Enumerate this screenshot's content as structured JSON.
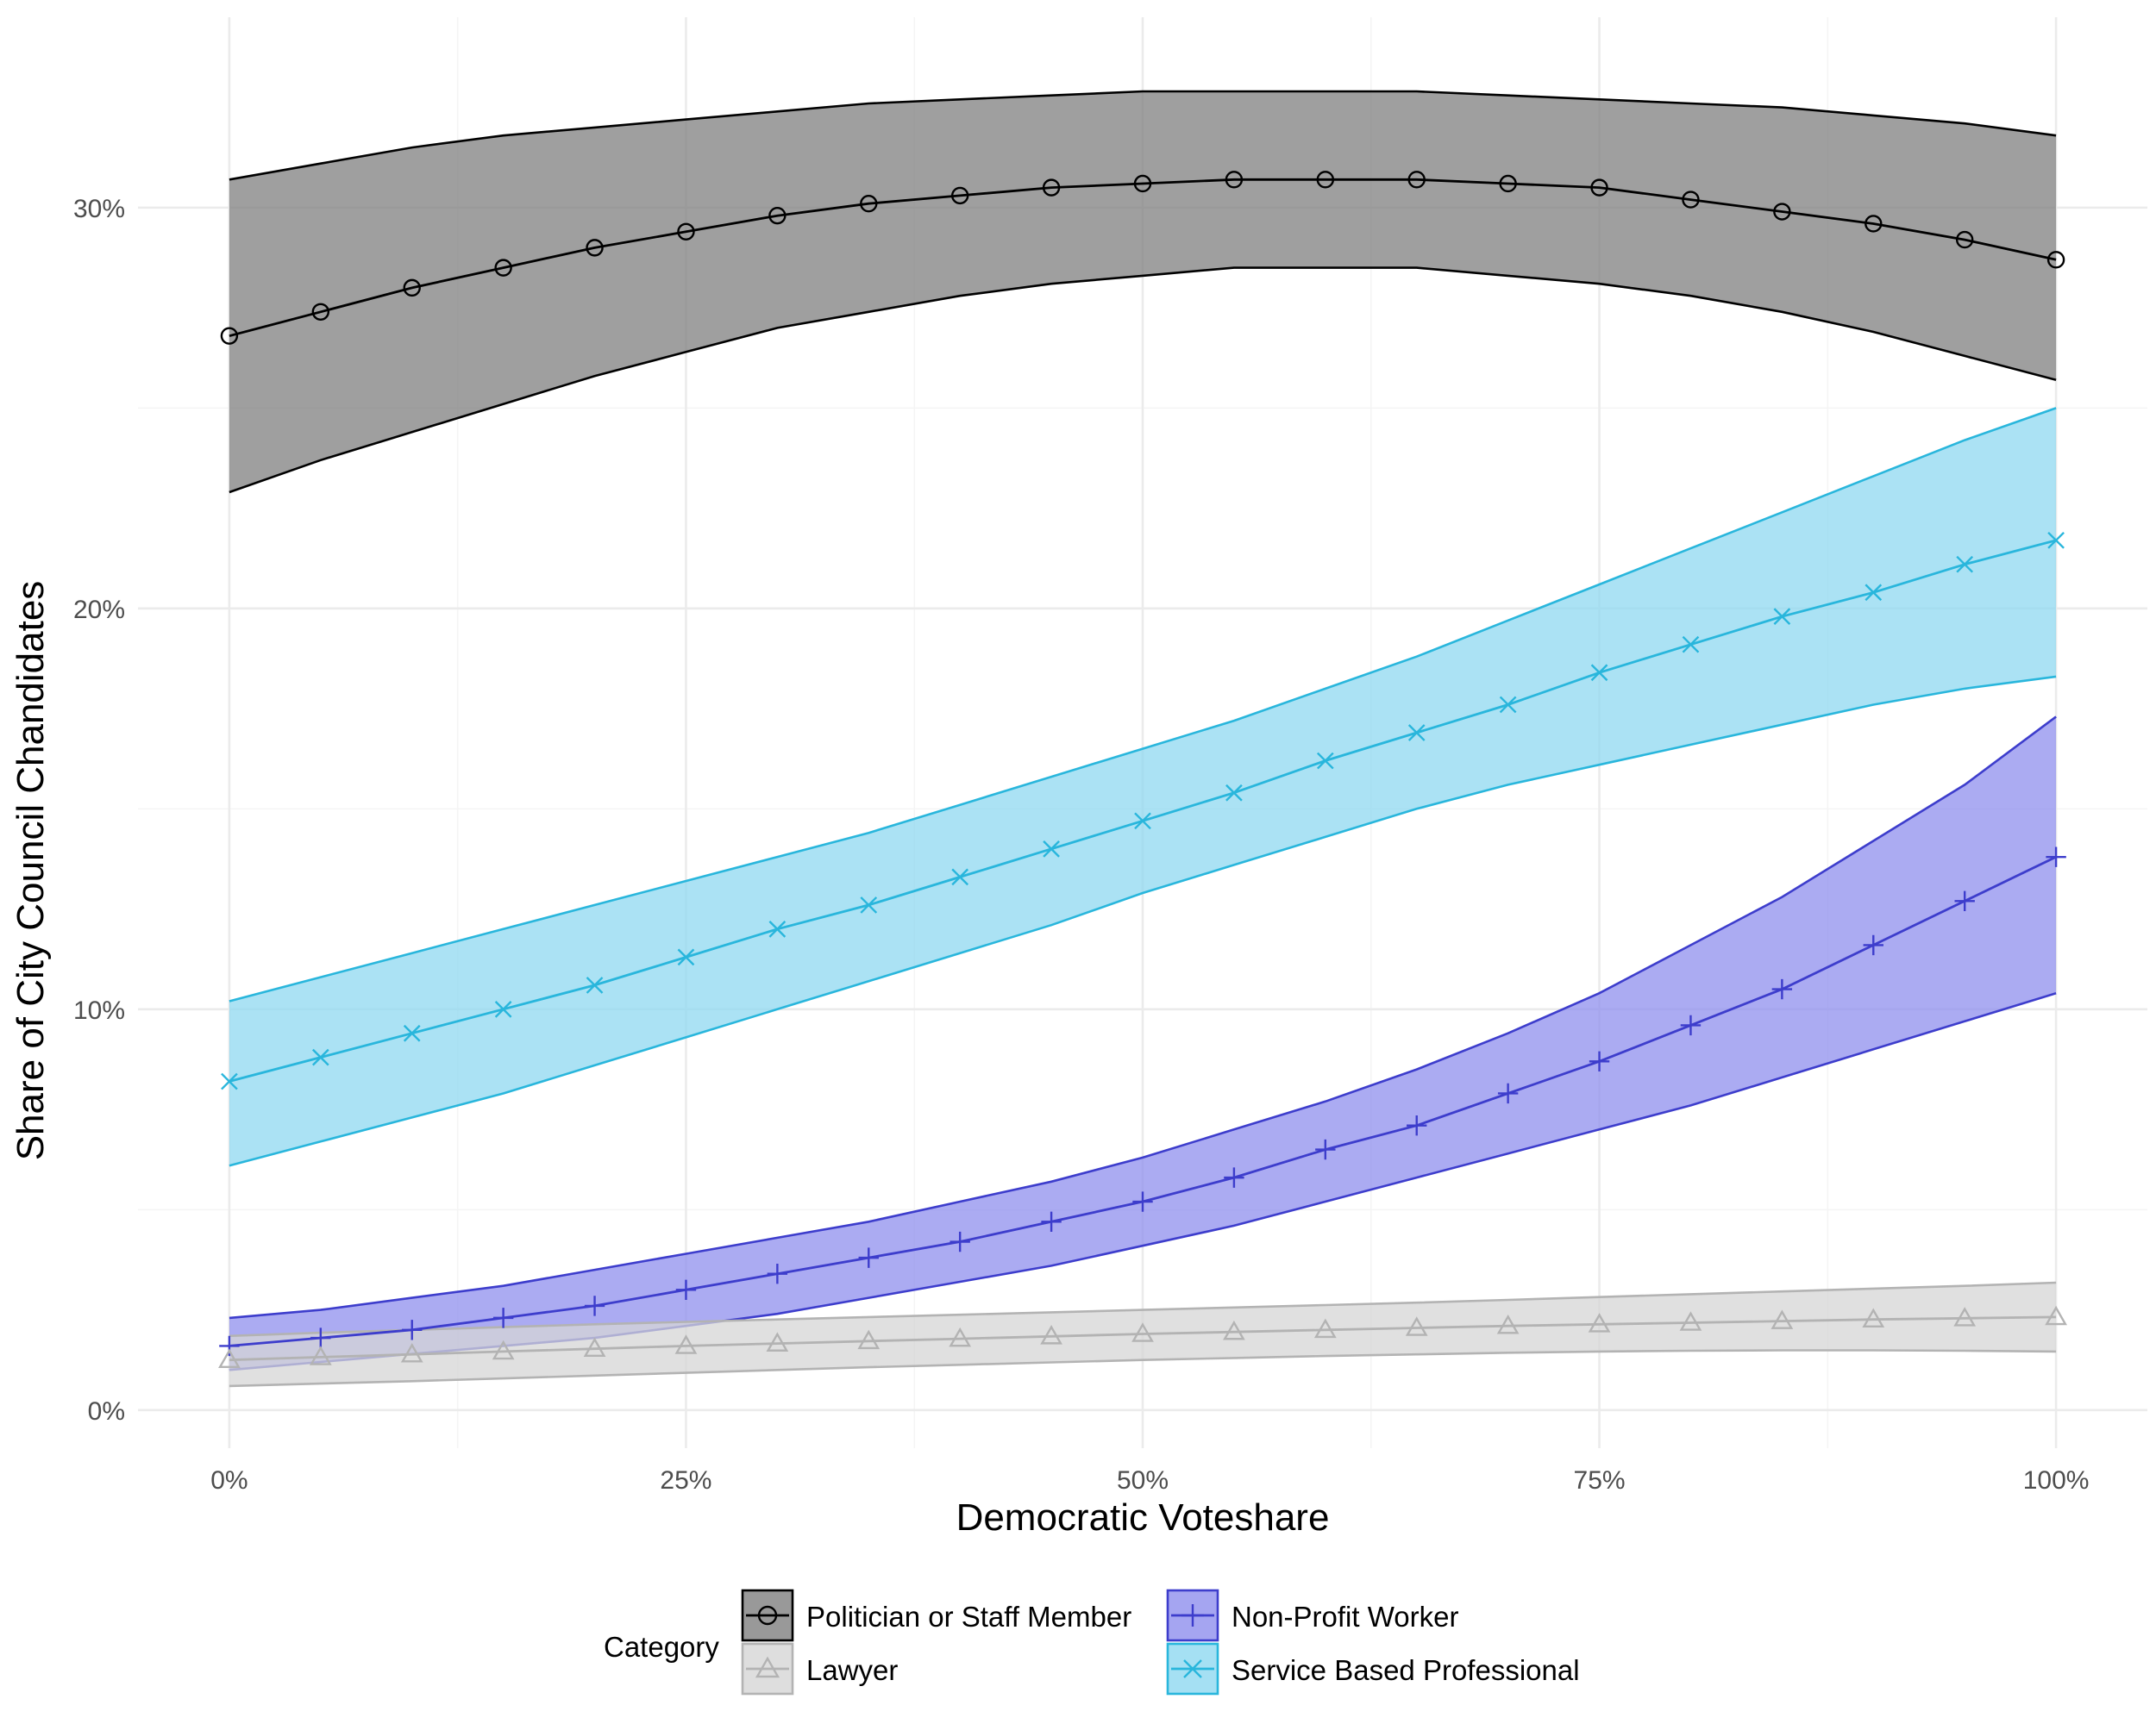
{
  "chart_data": {
    "type": "line",
    "title": "",
    "xlabel": "Democratic Voteshare",
    "ylabel": "Share of City Council Chandidates",
    "x": [
      0,
      0.05,
      0.1,
      0.15,
      0.2,
      0.25,
      0.3,
      0.35,
      0.4,
      0.45,
      0.5,
      0.55,
      0.6,
      0.65,
      0.7,
      0.75,
      0.8,
      0.85,
      0.9,
      0.95,
      1.0
    ],
    "xlim": [
      -0.05,
      1.05
    ],
    "ylim": [
      -0.0095,
      0.3475
    ],
    "x_ticks": [
      0,
      0.25,
      0.5,
      0.75,
      1.0
    ],
    "x_tick_labels": [
      "0%",
      "25%",
      "50%",
      "75%",
      "100%"
    ],
    "y_ticks": [
      0,
      0.1,
      0.2,
      0.3
    ],
    "y_tick_labels": [
      "0%",
      "10%",
      "20%",
      "30%"
    ],
    "grid": true,
    "legend": {
      "title": "Category",
      "position": "bottom",
      "entries": [
        "Politician or Staff Member",
        "Non-Profit Worker",
        "Lawyer",
        "Service Based Professional"
      ]
    },
    "series": [
      {
        "name": "Politician or Staff Member",
        "color": "#000000",
        "fill": "#7f7f7f",
        "marker": "circle",
        "values": [
          0.268,
          0.274,
          0.28,
          0.285,
          0.29,
          0.294,
          0.298,
          0.301,
          0.303,
          0.305,
          0.306,
          0.307,
          0.307,
          0.307,
          0.306,
          0.305,
          0.302,
          0.299,
          0.296,
          0.292,
          0.287
        ],
        "lower": [
          0.229,
          0.237,
          0.244,
          0.251,
          0.258,
          0.264,
          0.27,
          0.274,
          0.278,
          0.281,
          0.283,
          0.285,
          0.285,
          0.285,
          0.283,
          0.281,
          0.278,
          0.274,
          0.269,
          0.263,
          0.257
        ],
        "upper": [
          0.307,
          0.311,
          0.315,
          0.318,
          0.32,
          0.322,
          0.324,
          0.326,
          0.327,
          0.328,
          0.329,
          0.329,
          0.329,
          0.329,
          0.328,
          0.327,
          0.326,
          0.325,
          0.323,
          0.321,
          0.318
        ]
      },
      {
        "name": "Service Based Professional",
        "color": "#29b6dc",
        "fill": "#8fd8f0",
        "marker": "x",
        "values": [
          0.082,
          0.088,
          0.094,
          0.1,
          0.106,
          0.113,
          0.12,
          0.126,
          0.133,
          0.14,
          0.147,
          0.154,
          0.162,
          0.169,
          0.176,
          0.184,
          0.191,
          0.198,
          0.204,
          0.211,
          0.217
        ],
        "lower": [
          0.061,
          0.067,
          0.073,
          0.079,
          0.086,
          0.093,
          0.1,
          0.107,
          0.114,
          0.121,
          0.129,
          0.136,
          0.143,
          0.15,
          0.156,
          0.161,
          0.166,
          0.171,
          0.176,
          0.18,
          0.183
        ],
        "upper": [
          0.102,
          0.108,
          0.114,
          0.12,
          0.126,
          0.132,
          0.138,
          0.144,
          0.151,
          0.158,
          0.165,
          0.172,
          0.18,
          0.188,
          0.197,
          0.206,
          0.215,
          0.224,
          0.233,
          0.242,
          0.25
        ]
      },
      {
        "name": "Non-Profit Worker",
        "color": "#3d3dcc",
        "fill": "#8f8fee",
        "marker": "plus",
        "values": [
          0.016,
          0.018,
          0.02,
          0.023,
          0.026,
          0.03,
          0.034,
          0.038,
          0.042,
          0.047,
          0.052,
          0.058,
          0.065,
          0.071,
          0.079,
          0.087,
          0.096,
          0.105,
          0.116,
          0.127,
          0.138
        ],
        "lower": [
          0.01,
          0.012,
          0.014,
          0.016,
          0.018,
          0.021,
          0.024,
          0.028,
          0.032,
          0.036,
          0.041,
          0.046,
          0.052,
          0.058,
          0.064,
          0.07,
          0.076,
          0.083,
          0.09,
          0.097,
          0.104
        ],
        "upper": [
          0.023,
          0.025,
          0.028,
          0.031,
          0.035,
          0.039,
          0.043,
          0.047,
          0.052,
          0.057,
          0.063,
          0.07,
          0.077,
          0.085,
          0.094,
          0.104,
          0.116,
          0.128,
          0.142,
          0.156,
          0.173
        ]
      },
      {
        "name": "Lawyer",
        "color": "#b3b3b3",
        "fill": "#d6d6d6",
        "marker": "triangle",
        "values": [
          0.0125,
          0.0132,
          0.0139,
          0.0146,
          0.0153,
          0.016,
          0.0166,
          0.0172,
          0.0178,
          0.0184,
          0.019,
          0.0195,
          0.02,
          0.0205,
          0.021,
          0.0214,
          0.0218,
          0.0222,
          0.0226,
          0.0229,
          0.0232
        ],
        "lower": [
          0.006,
          0.0066,
          0.0072,
          0.0079,
          0.0086,
          0.0093,
          0.01,
          0.0107,
          0.0113,
          0.0119,
          0.0125,
          0.013,
          0.0135,
          0.0139,
          0.0143,
          0.0146,
          0.0148,
          0.0149,
          0.0149,
          0.0148,
          0.0146
        ],
        "upper": [
          0.0185,
          0.0193,
          0.02,
          0.0207,
          0.0214,
          0.022,
          0.0226,
          0.0232,
          0.0238,
          0.0244,
          0.025,
          0.0256,
          0.0262,
          0.0268,
          0.0275,
          0.0282,
          0.0289,
          0.0296,
          0.0303,
          0.031,
          0.0318
        ]
      }
    ]
  }
}
